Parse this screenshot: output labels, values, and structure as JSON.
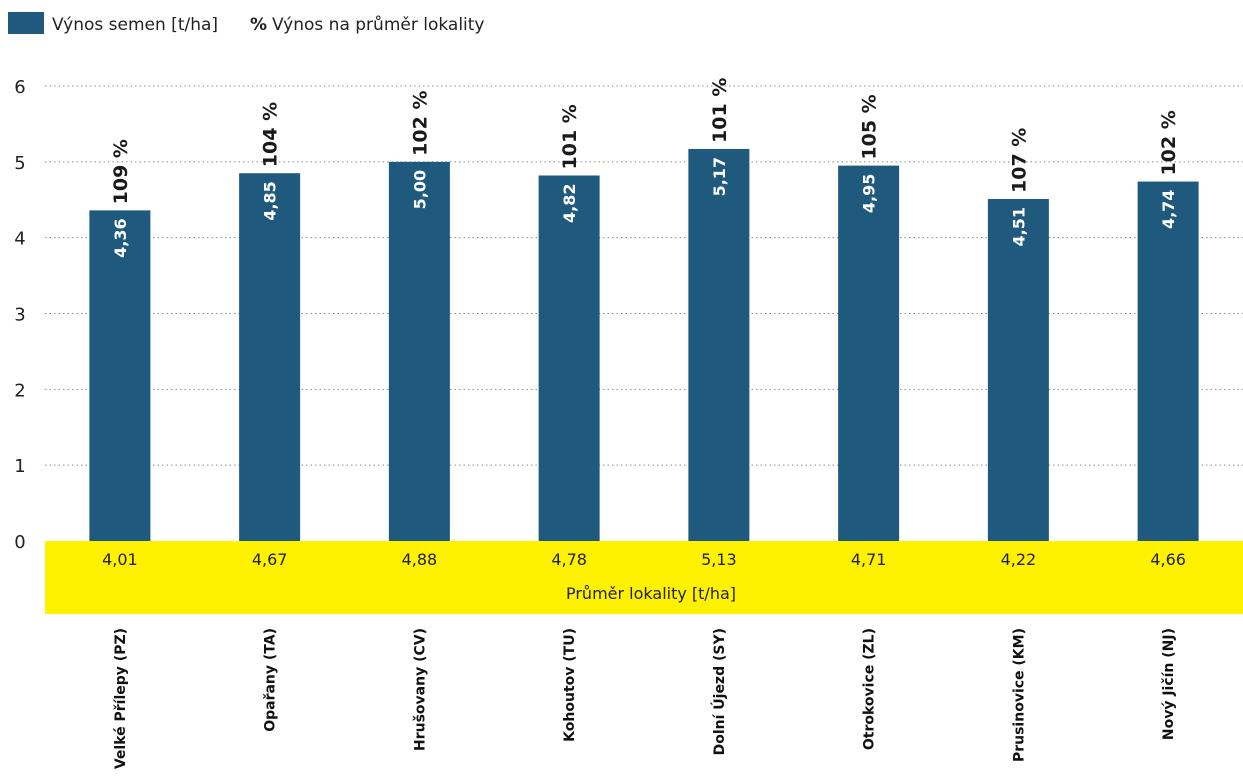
{
  "legend": {
    "bar_label": "Výnos semen [t/ha]",
    "pct_symbol": "%",
    "pct_label": "Výnos na průměr lokality"
  },
  "colors": {
    "bar": "#1f5a7e",
    "band": "#fff200"
  },
  "chart_data": {
    "type": "bar",
    "ylim": [
      0,
      6
    ],
    "yticks": [
      "0",
      "1",
      "2",
      "3",
      "4",
      "5",
      "6"
    ],
    "categories": [
      "Velké Přílepy (PZ)",
      "Opařany (TA)",
      "Hrušovany (CV)",
      "Kohoutov (TU)",
      "Dolní Újezd (SY)",
      "Otrokovice (ZL)",
      "Prusinovice (KM)",
      "Nový Jičín (NJ)"
    ],
    "values": [
      4.36,
      4.85,
      5.0,
      4.82,
      5.17,
      4.95,
      4.51,
      4.74
    ],
    "value_labels": [
      "4,36",
      "4,85",
      "5,00",
      "4,82",
      "5,17",
      "4,95",
      "4,51",
      "4,74"
    ],
    "percent_labels": [
      "109 %",
      "104 %",
      "102 %",
      "101 %",
      "101 %",
      "105 %",
      "107 %",
      "102 %"
    ],
    "site_average_title": "Průměr lokality [t/ha]",
    "site_average": [
      4.01,
      4.67,
      4.88,
      4.78,
      5.13,
      4.71,
      4.22,
      4.66
    ],
    "site_average_labels": [
      "4,01",
      "4,67",
      "4,88",
      "4,78",
      "5,13",
      "4,71",
      "4,22",
      "4,66"
    ],
    "grid": true,
    "legend_position": "top-left"
  }
}
